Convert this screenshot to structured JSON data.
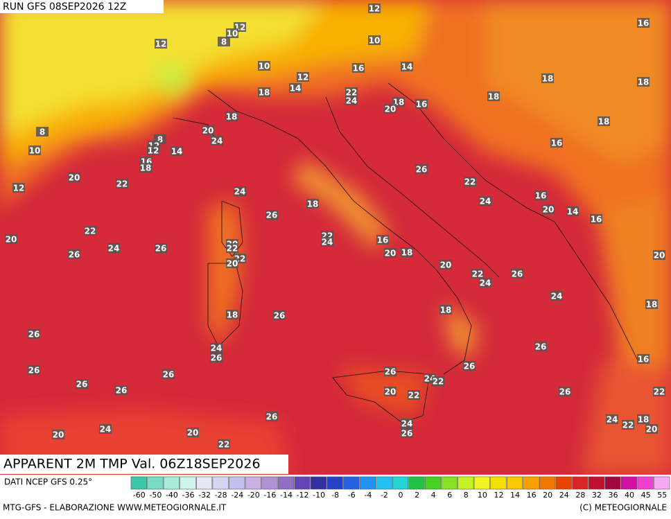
{
  "header": {
    "run": "RUN GFS 08SEP2026 12Z"
  },
  "map": {
    "title": "APPARENT 2M TMP Val. 06Z18SEP2026",
    "labels": [
      12,
      16,
      12,
      10,
      8,
      10,
      12,
      10,
      14,
      16,
      12,
      14,
      18,
      18,
      18,
      22,
      24,
      18,
      18,
      20,
      16,
      18,
      18,
      24,
      20,
      8,
      12,
      12,
      14,
      8,
      10,
      16,
      16,
      18,
      26,
      20,
      22,
      22,
      12,
      24,
      16,
      24,
      20,
      14,
      18,
      26,
      16,
      22,
      20,
      22,
      24,
      16,
      20,
      22,
      24,
      26,
      26,
      20,
      18,
      20,
      22,
      20,
      22,
      26,
      24,
      24,
      18,
      18,
      18,
      26,
      26,
      26,
      24,
      26,
      16,
      26,
      26,
      26,
      26,
      24,
      22,
      26,
      26,
      20,
      22,
      26,
      22,
      26,
      24,
      18,
      22,
      24,
      24,
      20,
      26,
      20,
      20,
      20,
      22
    ]
  },
  "colorbar": {
    "labels": [
      -60,
      -50,
      -40,
      -36,
      -32,
      -28,
      -24,
      -20,
      -16,
      -14,
      -12,
      -10,
      -8,
      -6,
      -4,
      -2,
      0,
      2,
      4,
      6,
      8,
      10,
      12,
      14,
      16,
      20,
      24,
      28,
      32,
      36,
      40,
      45,
      55
    ],
    "colors": [
      "#3cc8a8",
      "#78dcc4",
      "#a8ecdc",
      "#cdf4ec",
      "#e6e6f4",
      "#d6d6f4",
      "#c4c0ee",
      "#c8b0e2",
      "#b092d2",
      "#9070c2",
      "#6244b2",
      "#3430a2",
      "#2442c2",
      "#2462e2",
      "#2492f2",
      "#24c2f2",
      "#24d4d4",
      "#24c244",
      "#48d224",
      "#88e224",
      "#c4f224",
      "#f4f424",
      "#f4e000",
      "#f8c800",
      "#f8a000",
      "#f07800",
      "#e84400",
      "#d82424",
      "#c01030",
      "#a00840",
      "#d010a0",
      "#f040d0",
      "#f8a8f0"
    ]
  },
  "footer": {
    "source": "DATI NCEP GFS 0.25°",
    "credit": "MTG-GFS - ELABORAZIONE WWW.METEOGIORNALE.IT",
    "copyright": "(C) METEOGIORNALE"
  }
}
